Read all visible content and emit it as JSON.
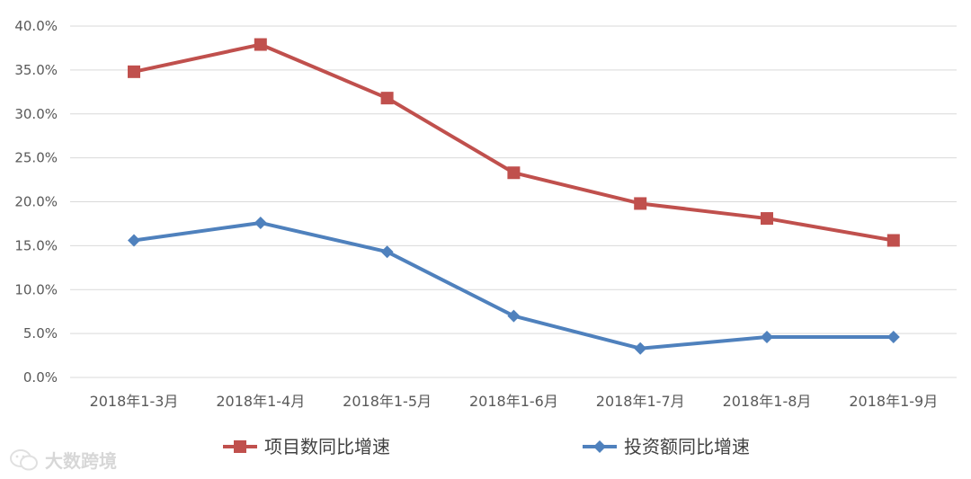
{
  "chart_data": {
    "type": "line",
    "categories": [
      "2018年1-3月",
      "2018年1-4月",
      "2018年1-5月",
      "2018年1-6月",
      "2018年1-7月",
      "2018年1-8月",
      "2018年1-9月"
    ],
    "series": [
      {
        "name": "项目数同比增速",
        "values": [
          34.8,
          37.9,
          31.8,
          23.3,
          19.8,
          18.1,
          15.6
        ],
        "color": "#c0504d",
        "marker": "square"
      },
      {
        "name": "投资额同比增速",
        "values": [
          15.6,
          17.6,
          14.3,
          7.0,
          3.3,
          4.6,
          4.6
        ],
        "color": "#4f81bd",
        "marker": "diamond"
      }
    ],
    "ylim": [
      0,
      40
    ],
    "yticks": [
      "0.0%",
      "5.0%",
      "10.0%",
      "15.0%",
      "20.0%",
      "25.0%",
      "30.0%",
      "35.0%",
      "40.0%"
    ],
    "grid": true,
    "legend_position": "bottom"
  },
  "watermark": {
    "text": "大数跨境",
    "icon": "wechat-icon"
  }
}
